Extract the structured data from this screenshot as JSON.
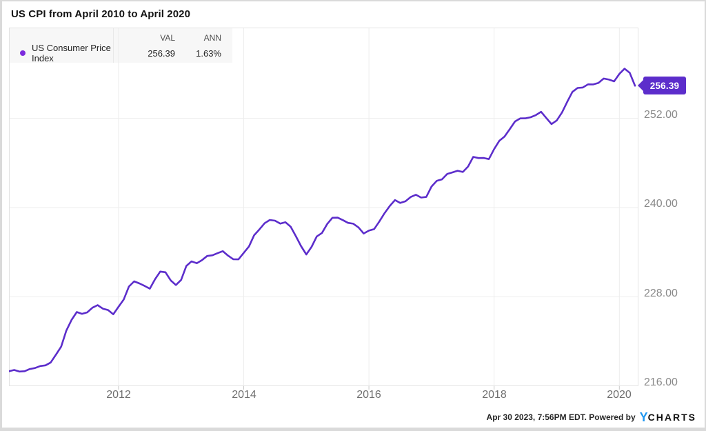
{
  "title": "US CPI from April 2010 to April 2020",
  "legend": {
    "columns": {
      "val": "VAL",
      "ann": "ANN"
    },
    "series": {
      "name": "US Consumer Price Index",
      "val": "256.39",
      "ann": "1.63%"
    }
  },
  "badge": {
    "label": "256.39"
  },
  "footer": {
    "text": "Apr 30 2023, 7:56PM EDT. Powered by",
    "logo_y": "Y",
    "logo_charts": "CHARTS"
  },
  "colors": {
    "accent": "#5c2dcb",
    "legend_dot": "#7c2bdd",
    "grid": "#ededed",
    "plot_border": "#e2e2e2",
    "tick": "#c9c9c9",
    "logo_blue": "#1e96f0"
  },
  "chart_data": {
    "type": "line",
    "title": "US CPI from April 2010 to April 2020",
    "frequency": "monthly",
    "x_start": "2010-04",
    "x_end": "2020-04",
    "grid": true,
    "legend_position": "top-left",
    "xlabel": "",
    "ylabel": "",
    "ylim": [
      216,
      264.2
    ],
    "x_ticks": [
      "2012",
      "2014",
      "2016",
      "2018",
      "2020"
    ],
    "y_ticks": [
      {
        "value": 252,
        "label": "252.00"
      },
      {
        "value": 240,
        "label": "240.00"
      },
      {
        "value": 228,
        "label": "228.00"
      },
      {
        "value": 216,
        "label": "216.00"
      }
    ],
    "end_label": "256.39",
    "stats": {
      "val": 256.39,
      "ann_pct": 1.63
    },
    "series": [
      {
        "name": "US Consumer Price Index",
        "color": "#5c2dcb",
        "values": [
          218.009,
          218.178,
          217.965,
          218.011,
          218.312,
          218.439,
          218.711,
          218.803,
          219.179,
          220.223,
          221.309,
          223.467,
          224.906,
          225.964,
          225.722,
          225.922,
          226.545,
          226.889,
          226.421,
          226.23,
          225.672,
          226.665,
          227.663,
          229.392,
          230.085,
          229.815,
          229.478,
          229.104,
          230.379,
          231.407,
          231.317,
          230.221,
          229.601,
          230.28,
          232.166,
          232.773,
          232.531,
          232.945,
          233.504,
          233.596,
          233.877,
          234.149,
          233.546,
          233.069,
          233.049,
          233.916,
          234.781,
          236.293,
          237.072,
          237.9,
          238.343,
          238.25,
          237.852,
          238.031,
          237.433,
          236.151,
          234.812,
          233.707,
          234.722,
          236.119,
          236.599,
          237.805,
          238.638,
          238.654,
          238.316,
          237.945,
          237.838,
          237.336,
          236.525,
          236.916,
          237.111,
          238.132,
          239.261,
          240.229,
          241.018,
          240.628,
          240.849,
          241.428,
          241.729,
          241.353,
          241.432,
          242.839,
          243.603,
          243.801,
          244.524,
          244.733,
          244.955,
          244.786,
          245.519,
          246.819,
          246.663,
          246.669,
          246.524,
          247.867,
          248.991,
          249.554,
          250.546,
          251.588,
          251.989,
          252.006,
          252.146,
          252.439,
          252.885,
          252.038,
          251.233,
          251.712,
          252.776,
          254.202,
          255.548,
          256.092,
          256.143,
          256.571,
          256.558,
          256.759,
          257.346,
          257.208,
          256.974,
          257.971,
          258.678,
          258.115,
          256.389
        ]
      }
    ]
  }
}
